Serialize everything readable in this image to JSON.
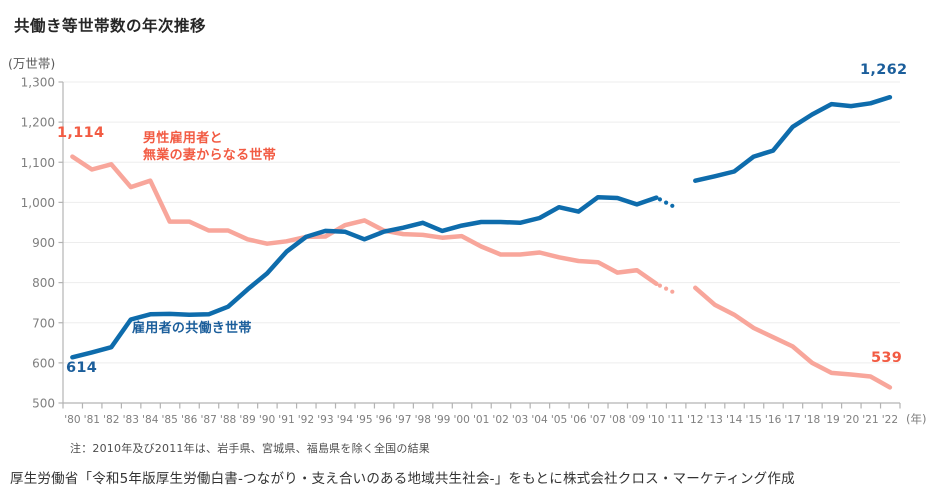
{
  "chart_data": {
    "type": "line",
    "title": "共働き等世帯数の年次推移",
    "unit_label": "(万世帯)",
    "x_unit_label": "(年)",
    "note": "注：2010年及び2011年は、岩手県、宮城県、福島県を除く全国の結果",
    "source": "厚生労働省「令和5年版厚生労働白書-つながり・支え合いのある地域共生社会-」をもとに株式会社クロス・マーケティング作成",
    "ylim": [
      500,
      1300
    ],
    "ytick_step": 100,
    "grid": true,
    "legend_position": "inline-labels",
    "x_labels": [
      "'80",
      "'81",
      "'82",
      "'83",
      "'84",
      "'85",
      "'86",
      "'87",
      "'88",
      "'89",
      "'90",
      "'91",
      "'92",
      "'93",
      "'94",
      "'95",
      "'96",
      "'97",
      "'98",
      "'99",
      "'00",
      "'01",
      "'02",
      "'03",
      "'04",
      "'05",
      "'06",
      "'07",
      "'08",
      "'09",
      "'10",
      "'11",
      "'12",
      "'13",
      "'14",
      "'15",
      "'16",
      "'17",
      "'18",
      "'19",
      "'20",
      "'21",
      "'22"
    ],
    "dotted_x_range": [
      "'10",
      "'11"
    ],
    "axis_color": "#b3b3b3",
    "grid_color": "#ededed",
    "tick_label_color": "#7f7f7f",
    "series": [
      {
        "name": "男性雇用者と無業の妻からなる世帯",
        "label_lines": [
          "男性雇用者と",
          "無業の妻からなる世帯"
        ],
        "line_color": "#f8a69b",
        "label_color": "#f25b43",
        "start_value_label": "1,114",
        "end_value_label": "539",
        "values": [
          1114,
          1082,
          1095,
          1038,
          1054,
          952,
          952,
          930,
          930,
          908,
          897,
          903,
          914,
          915,
          943,
          955,
          930,
          921,
          919,
          912,
          916,
          890,
          870,
          870,
          875,
          863,
          854,
          851,
          825,
          831,
          797,
          773,
          787,
          745,
          720,
          687,
          664,
          641,
          600,
          575,
          571,
          566,
          539
        ]
      },
      {
        "name": "雇用者の共働き世帯",
        "label_lines": [
          "雇用者の共働き世帯"
        ],
        "line_color": "#0e6cac",
        "label_color": "#1b5e9b",
        "start_value_label": "614",
        "end_value_label": "1,262",
        "values": [
          614,
          626,
          639,
          708,
          721,
          722,
          720,
          721,
          740,
          783,
          823,
          877,
          914,
          929,
          927,
          908,
          927,
          937,
          949,
          929,
          942,
          951,
          951,
          949,
          961,
          988,
          977,
          1013,
          1011,
          995,
          1012,
          987,
          1054,
          1065,
          1077,
          1114,
          1129,
          1188,
          1219,
          1245,
          1240,
          1247,
          1262
        ]
      }
    ]
  }
}
